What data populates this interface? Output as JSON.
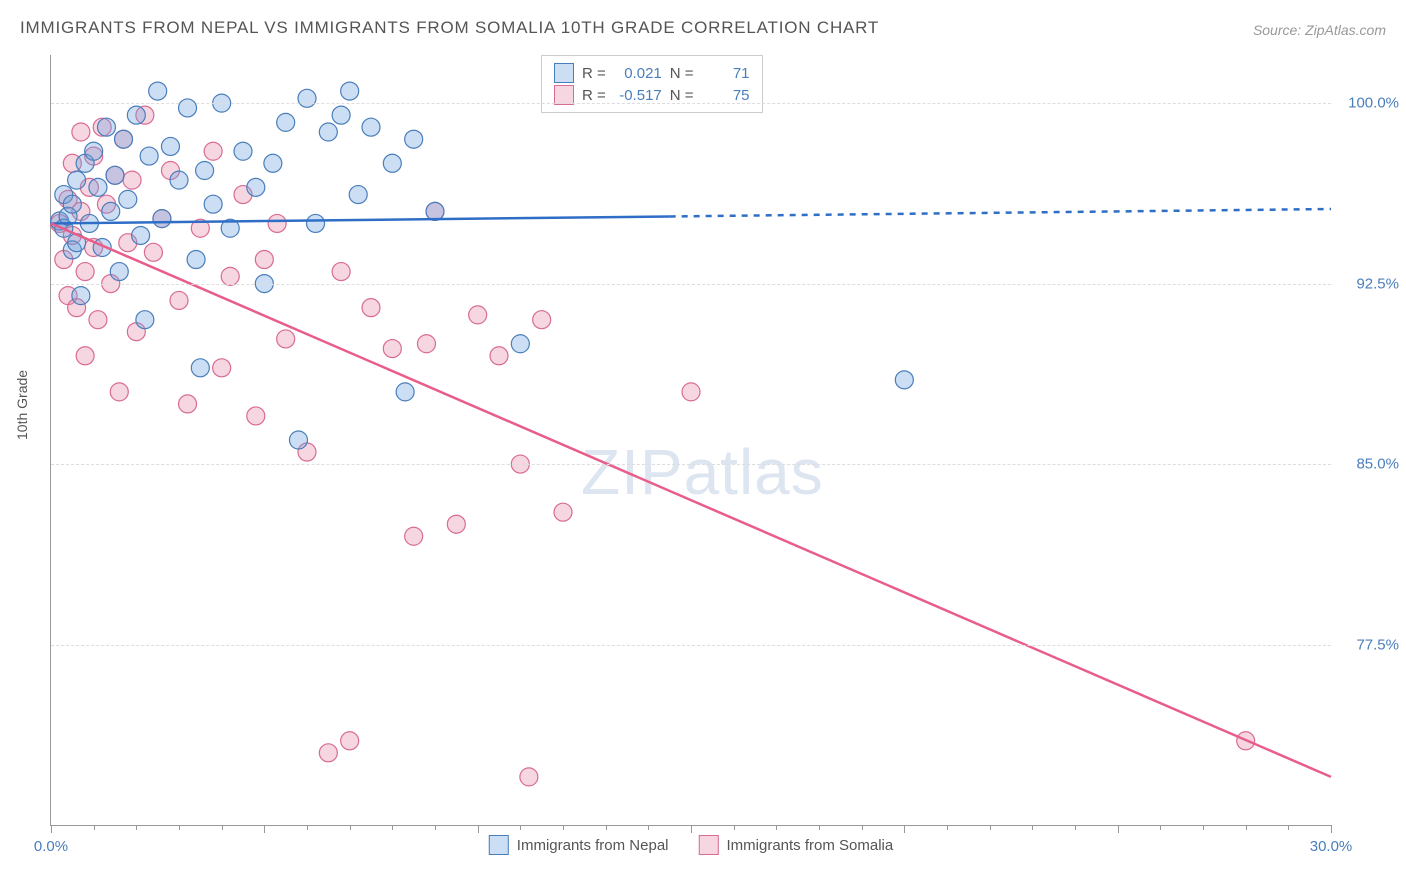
{
  "title": "IMMIGRANTS FROM NEPAL VS IMMIGRANTS FROM SOMALIA 10TH GRADE CORRELATION CHART",
  "source": "Source: ZipAtlas.com",
  "ylabel": "10th Grade",
  "watermark_zip": "ZIP",
  "watermark_atlas": "atlas",
  "chart": {
    "type": "scatter_with_regression",
    "background_color": "#ffffff",
    "grid_color": "#dddddd",
    "grid_dash": "4,4",
    "axis_color": "#999999",
    "xlim": [
      0.0,
      30.0
    ],
    "ylim": [
      70.0,
      102.0
    ],
    "yticks": [
      77.5,
      85.0,
      92.5,
      100.0
    ],
    "ytick_labels": [
      "77.5%",
      "85.0%",
      "92.5%",
      "100.0%"
    ],
    "xtick_labels": {
      "min": "0.0%",
      "max": "30.0%"
    },
    "xtick_major_step": 5.0,
    "xtick_minor_step": 1.0,
    "tick_label_color": "#4a7ebb",
    "tick_label_fontsize": 15,
    "marker_radius": 9,
    "marker_stroke_width": 1.2,
    "series": {
      "nepal": {
        "label": "Immigrants from Nepal",
        "color": "#6ea0dc",
        "fill": "rgba(110,160,220,0.35)",
        "stroke": "#4a7ebb",
        "R": "0.021",
        "N": "71",
        "regression": {
          "x1": 0.0,
          "y1": 95.0,
          "x2": 30.0,
          "y2": 95.6,
          "solid_until_x": 14.5,
          "line_color": "#2e6ec7",
          "line_width": 2.5,
          "dash": "6,6"
        },
        "points": [
          [
            0.2,
            95.1
          ],
          [
            0.3,
            94.8
          ],
          [
            0.4,
            95.3
          ],
          [
            0.3,
            96.2
          ],
          [
            0.5,
            93.9
          ],
          [
            0.5,
            95.8
          ],
          [
            0.6,
            96.8
          ],
          [
            0.6,
            94.2
          ],
          [
            0.7,
            92.0
          ],
          [
            0.8,
            97.5
          ],
          [
            0.9,
            95.0
          ],
          [
            1.0,
            98.0
          ],
          [
            1.1,
            96.5
          ],
          [
            1.2,
            94.0
          ],
          [
            1.3,
            99.0
          ],
          [
            1.4,
            95.5
          ],
          [
            1.5,
            97.0
          ],
          [
            1.6,
            93.0
          ],
          [
            1.7,
            98.5
          ],
          [
            1.8,
            96.0
          ],
          [
            2.0,
            99.5
          ],
          [
            2.1,
            94.5
          ],
          [
            2.2,
            91.0
          ],
          [
            2.3,
            97.8
          ],
          [
            2.5,
            100.5
          ],
          [
            2.6,
            95.2
          ],
          [
            2.8,
            98.2
          ],
          [
            3.0,
            96.8
          ],
          [
            3.2,
            99.8
          ],
          [
            3.4,
            93.5
          ],
          [
            3.5,
            89.0
          ],
          [
            3.6,
            97.2
          ],
          [
            3.8,
            95.8
          ],
          [
            4.0,
            100.0
          ],
          [
            4.2,
            94.8
          ],
          [
            4.5,
            98.0
          ],
          [
            4.8,
            96.5
          ],
          [
            5.0,
            92.5
          ],
          [
            5.2,
            97.5
          ],
          [
            5.5,
            99.2
          ],
          [
            5.8,
            86.0
          ],
          [
            6.0,
            100.2
          ],
          [
            6.2,
            95.0
          ],
          [
            6.5,
            98.8
          ],
          [
            6.8,
            99.5
          ],
          [
            7.0,
            100.5
          ],
          [
            7.2,
            96.2
          ],
          [
            7.5,
            99.0
          ],
          [
            8.0,
            97.5
          ],
          [
            8.3,
            88.0
          ],
          [
            8.5,
            98.5
          ],
          [
            9.0,
            95.5
          ],
          [
            11.0,
            90.0
          ],
          [
            20.0,
            88.5
          ]
        ]
      },
      "somalia": {
        "label": "Immigrants from Somalia",
        "color": "#e28aa8",
        "fill": "rgba(226,138,168,0.35)",
        "stroke": "#d96b94",
        "R": "-0.517",
        "N": "75",
        "regression": {
          "x1": 0.0,
          "y1": 95.0,
          "x2": 30.0,
          "y2": 72.0,
          "line_color": "#e85d8a",
          "line_width": 2.5
        },
        "points": [
          [
            0.2,
            95.0
          ],
          [
            0.3,
            93.5
          ],
          [
            0.4,
            96.0
          ],
          [
            0.4,
            92.0
          ],
          [
            0.5,
            97.5
          ],
          [
            0.5,
            94.5
          ],
          [
            0.6,
            91.5
          ],
          [
            0.7,
            98.8
          ],
          [
            0.7,
            95.5
          ],
          [
            0.8,
            93.0
          ],
          [
            0.8,
            89.5
          ],
          [
            0.9,
            96.5
          ],
          [
            1.0,
            94.0
          ],
          [
            1.0,
            97.8
          ],
          [
            1.1,
            91.0
          ],
          [
            1.2,
            99.0
          ],
          [
            1.3,
            95.8
          ],
          [
            1.4,
            92.5
          ],
          [
            1.5,
            97.0
          ],
          [
            1.6,
            88.0
          ],
          [
            1.7,
            98.5
          ],
          [
            1.8,
            94.2
          ],
          [
            1.9,
            96.8
          ],
          [
            2.0,
            90.5
          ],
          [
            2.2,
            99.5
          ],
          [
            2.4,
            93.8
          ],
          [
            2.6,
            95.2
          ],
          [
            2.8,
            97.2
          ],
          [
            3.0,
            91.8
          ],
          [
            3.2,
            87.5
          ],
          [
            3.5,
            94.8
          ],
          [
            3.8,
            98.0
          ],
          [
            4.0,
            89.0
          ],
          [
            4.2,
            92.8
          ],
          [
            4.5,
            96.2
          ],
          [
            4.8,
            87.0
          ],
          [
            5.0,
            93.5
          ],
          [
            5.3,
            95.0
          ],
          [
            5.5,
            90.2
          ],
          [
            6.0,
            85.5
          ],
          [
            6.5,
            73.0
          ],
          [
            6.8,
            93.0
          ],
          [
            7.0,
            73.5
          ],
          [
            7.5,
            91.5
          ],
          [
            8.0,
            89.8
          ],
          [
            8.5,
            82.0
          ],
          [
            8.8,
            90.0
          ],
          [
            9.0,
            95.5
          ],
          [
            9.5,
            82.5
          ],
          [
            10.0,
            91.2
          ],
          [
            10.5,
            89.5
          ],
          [
            11.0,
            85.0
          ],
          [
            11.2,
            72.0
          ],
          [
            11.5,
            91.0
          ],
          [
            12.0,
            83.0
          ],
          [
            15.0,
            88.0
          ],
          [
            28.0,
            73.5
          ]
        ]
      }
    },
    "stats_legend": {
      "R_label": "R  =",
      "N_label": "N  ="
    }
  }
}
